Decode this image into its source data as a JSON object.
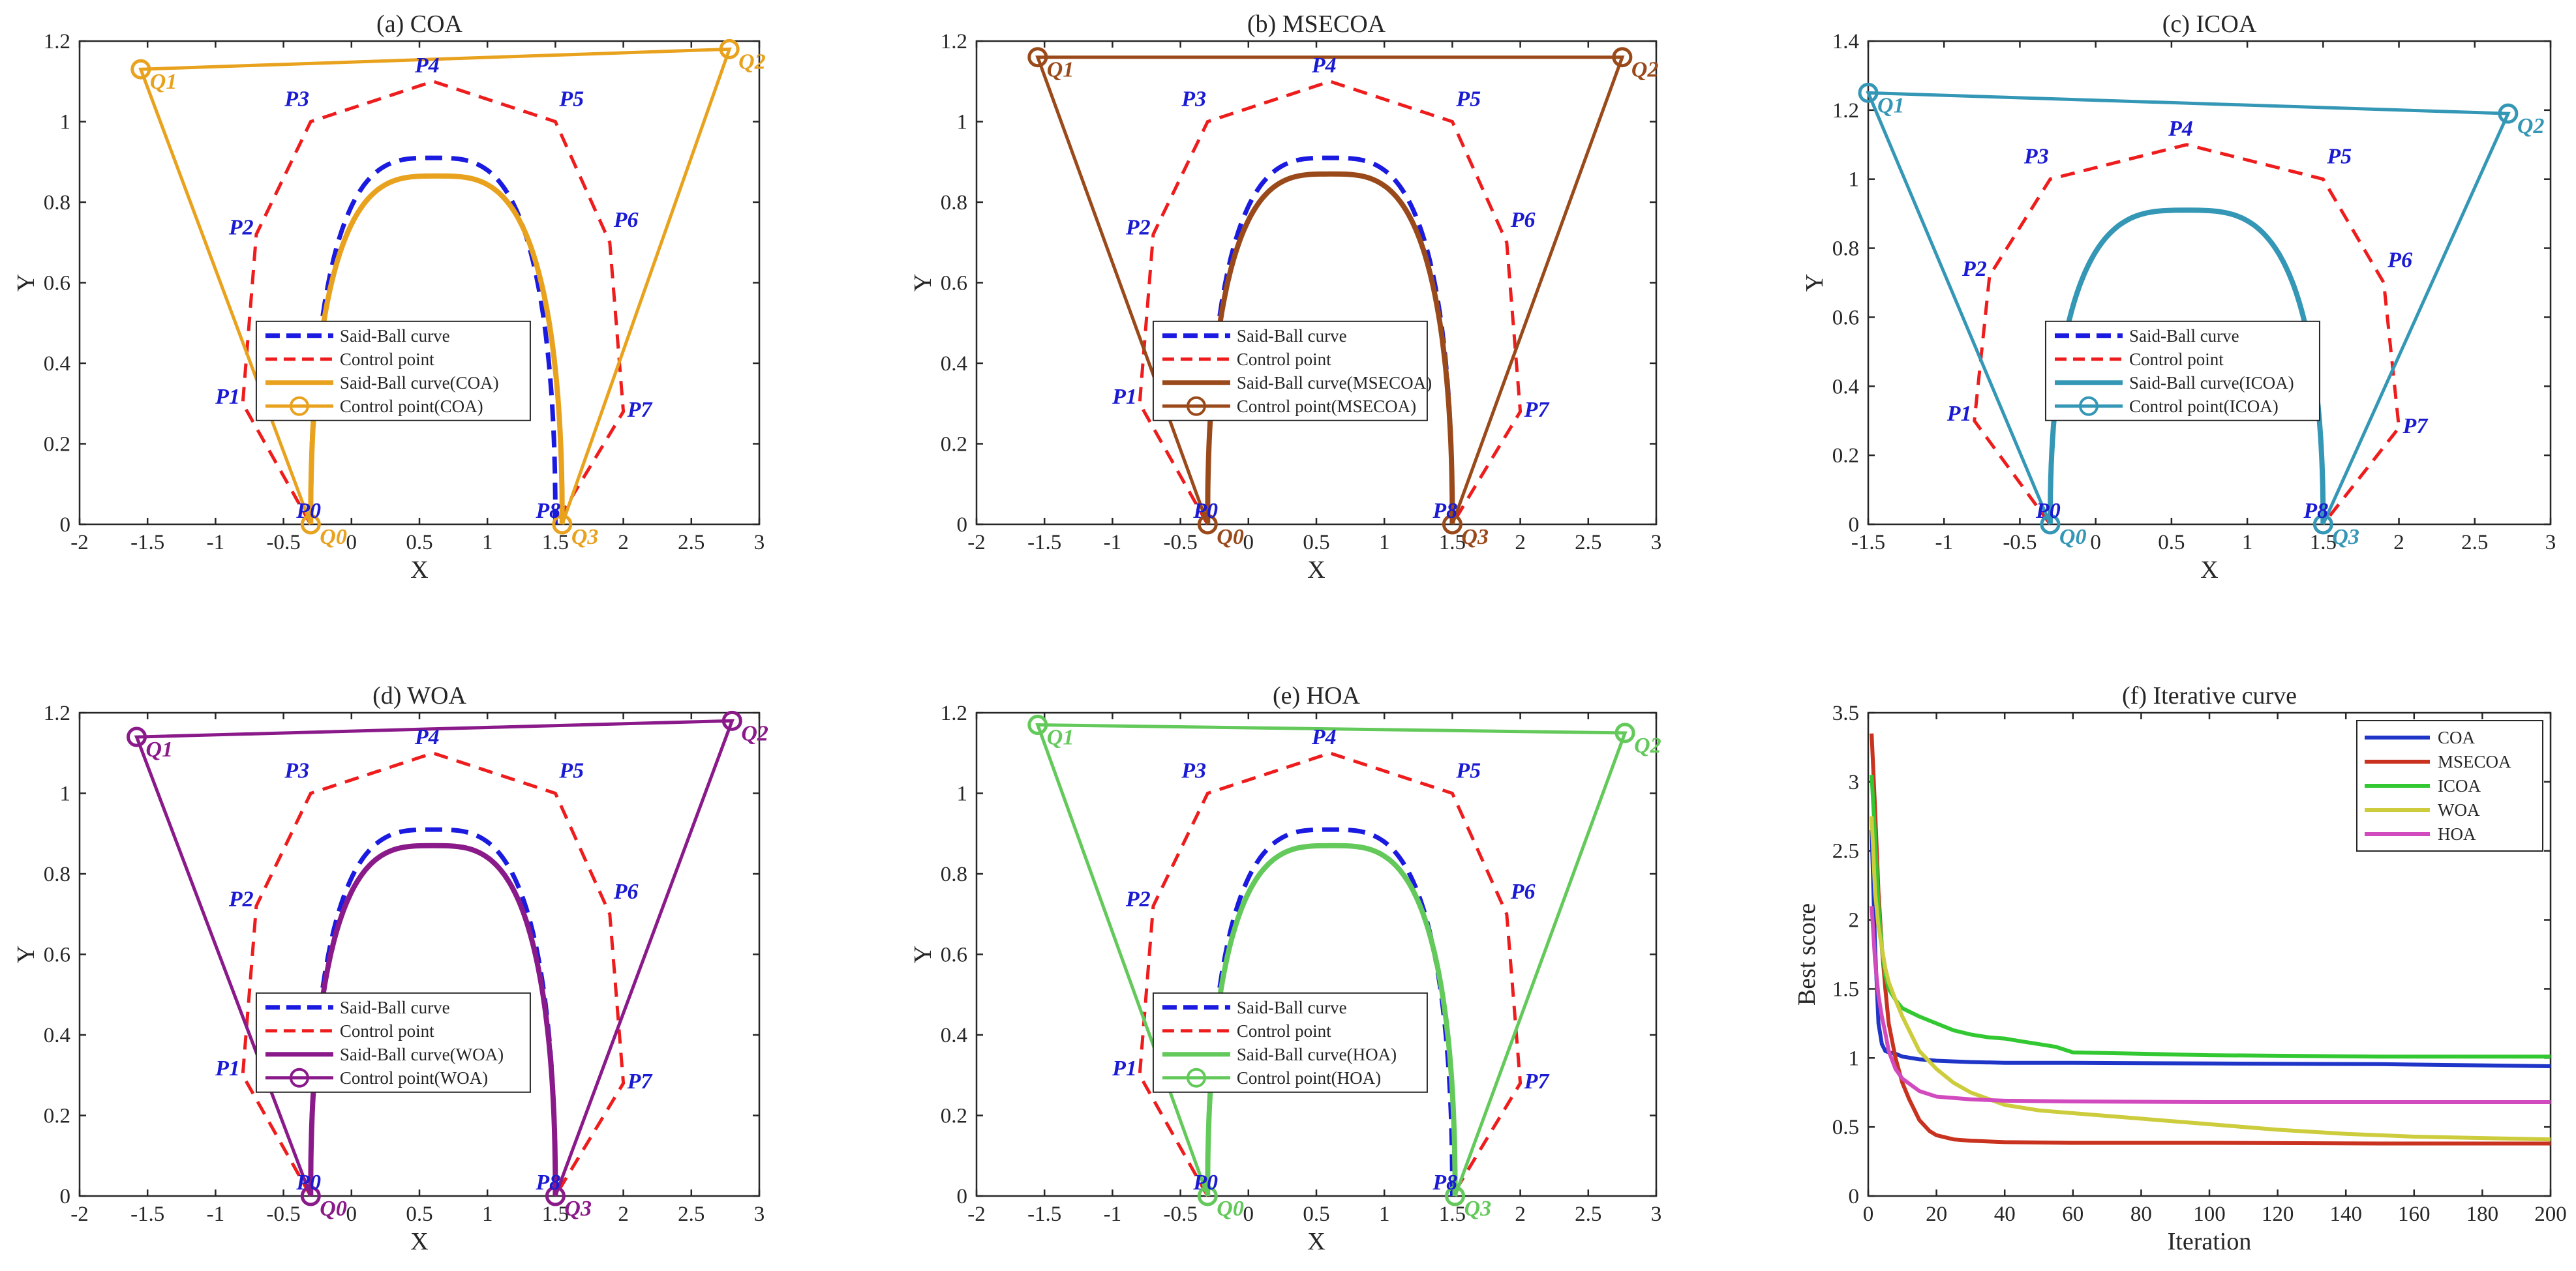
{
  "chart_data": [
    {
      "type": "line",
      "title": "(a) COA",
      "xlabel": "X",
      "ylabel": "Y",
      "xlim": [
        -2,
        3
      ],
      "ylim": [
        0,
        1.2
      ],
      "xticks": [
        -2,
        -1.5,
        -1,
        -0.5,
        0,
        0.5,
        1,
        1.5,
        2,
        2.5,
        3
      ],
      "xtick_labels": [
        "-2",
        "-1.5",
        "-1",
        "-0.5",
        "0",
        "0.5",
        "1",
        "1.5",
        "2",
        "2.5",
        "3"
      ],
      "yticks": [
        0,
        0.2,
        0.4,
        0.6,
        0.8,
        1,
        1.2
      ],
      "ytick_labels": [
        "0",
        "0.2",
        "0.4",
        "0.6",
        "0.8",
        "1",
        "1.2"
      ],
      "color": "#e8a21e",
      "original_control_points": [
        [
          -0.3,
          0
        ],
        [
          -0.8,
          0.3
        ],
        [
          -0.7,
          0.72
        ],
        [
          -0.3,
          1
        ],
        [
          0.6,
          1.1
        ],
        [
          1.5,
          1
        ],
        [
          1.9,
          0.7
        ],
        [
          2.0,
          0.28
        ],
        [
          1.5,
          0
        ]
      ],
      "original_point_labels": [
        "P0",
        "P1",
        "P2",
        "P3",
        "P4",
        "P5",
        "P6",
        "P7",
        "P8"
      ],
      "optimized_control_points": [
        [
          -0.3,
          0
        ],
        [
          -1.55,
          1.13
        ],
        [
          2.78,
          1.18
        ],
        [
          1.55,
          0
        ]
      ],
      "optimized_point_labels": [
        "Q0",
        "Q1",
        "Q2",
        "Q3"
      ],
      "fitted_curve": {
        "start": [
          -0.3,
          0
        ],
        "peak": [
          0.6,
          0.865
        ],
        "end": [
          1.55,
          0
        ]
      },
      "legend": [
        "Said-Ball curve",
        "Control point",
        "Said-Ball curve(COA)",
        "Control point(COA)"
      ]
    },
    {
      "type": "line",
      "title": "(b) MSECOA",
      "xlabel": "X",
      "ylabel": "Y",
      "xlim": [
        -2,
        3
      ],
      "ylim": [
        0,
        1.2
      ],
      "xticks": [
        -2,
        -1.5,
        -1,
        -0.5,
        0,
        0.5,
        1,
        1.5,
        2,
        2.5,
        3
      ],
      "xtick_labels": [
        "-2",
        "-1.5",
        "-1",
        "-0.5",
        "0",
        "0.5",
        "1",
        "1.5",
        "2",
        "2.5",
        "3"
      ],
      "yticks": [
        0,
        0.2,
        0.4,
        0.6,
        0.8,
        1,
        1.2
      ],
      "ytick_labels": [
        "0",
        "0.2",
        "0.4",
        "0.6",
        "0.8",
        "1",
        "1.2"
      ],
      "color": "#9a4a1a",
      "original_control_points": [
        [
          -0.3,
          0
        ],
        [
          -0.8,
          0.3
        ],
        [
          -0.7,
          0.72
        ],
        [
          -0.3,
          1
        ],
        [
          0.6,
          1.1
        ],
        [
          1.5,
          1
        ],
        [
          1.9,
          0.7
        ],
        [
          2.0,
          0.28
        ],
        [
          1.5,
          0
        ]
      ],
      "original_point_labels": [
        "P0",
        "P1",
        "P2",
        "P3",
        "P4",
        "P5",
        "P6",
        "P7",
        "P8"
      ],
      "optimized_control_points": [
        [
          -0.3,
          0
        ],
        [
          -1.55,
          1.16
        ],
        [
          2.75,
          1.16
        ],
        [
          1.5,
          0
        ]
      ],
      "optimized_point_labels": [
        "Q0",
        "Q1",
        "Q2",
        "Q3"
      ],
      "fitted_curve": {
        "start": [
          -0.3,
          0
        ],
        "peak": [
          0.6,
          0.87
        ],
        "end": [
          1.5,
          0
        ]
      },
      "legend": [
        "Said-Ball curve",
        "Control point",
        "Said-Ball curve(MSECOA)",
        "Control point(MSECOA)"
      ]
    },
    {
      "type": "line",
      "title": "(c) ICOA",
      "xlabel": "X",
      "ylabel": "Y",
      "xlim": [
        -1.5,
        3
      ],
      "ylim": [
        0,
        1.4
      ],
      "xticks": [
        -1.5,
        -1,
        -0.5,
        0,
        0.5,
        1,
        1.5,
        2,
        2.5,
        3
      ],
      "xtick_labels": [
        "-1.5",
        "-1",
        "-0.5",
        "0",
        "0.5",
        "1",
        "1.5",
        "2",
        "2.5",
        "3"
      ],
      "yticks": [
        0,
        0.2,
        0.4,
        0.6,
        0.8,
        1,
        1.2,
        1.4
      ],
      "ytick_labels": [
        "0",
        "0.2",
        "0.4",
        "0.6",
        "0.8",
        "1",
        "1.2",
        "1.4"
      ],
      "color": "#3497b6",
      "original_control_points": [
        [
          -0.3,
          0
        ],
        [
          -0.8,
          0.3
        ],
        [
          -0.7,
          0.72
        ],
        [
          -0.3,
          1
        ],
        [
          0.6,
          1.1
        ],
        [
          1.5,
          1
        ],
        [
          1.9,
          0.7
        ],
        [
          2.0,
          0.28
        ],
        [
          1.5,
          0
        ]
      ],
      "original_point_labels": [
        "P0",
        "P1",
        "P2",
        "P3",
        "P4",
        "P5",
        "P6",
        "P7",
        "P8"
      ],
      "optimized_control_points": [
        [
          -0.3,
          0
        ],
        [
          -1.5,
          1.25
        ],
        [
          2.72,
          1.19
        ],
        [
          1.5,
          0
        ]
      ],
      "optimized_point_labels": [
        "Q0",
        "Q1",
        "Q2",
        "Q3"
      ],
      "fitted_curve": {
        "start": [
          -0.3,
          0
        ],
        "peak": [
          0.6,
          0.91
        ],
        "end": [
          1.5,
          0
        ]
      },
      "legend": [
        "Said-Ball curve",
        "Control point",
        "Said-Ball curve(ICOA)",
        "Control point(ICOA)"
      ]
    },
    {
      "type": "line",
      "title": "(d) WOA",
      "xlabel": "X",
      "ylabel": "Y",
      "xlim": [
        -2,
        3
      ],
      "ylim": [
        0,
        1.2
      ],
      "xticks": [
        -2,
        -1.5,
        -1,
        -0.5,
        0,
        0.5,
        1,
        1.5,
        2,
        2.5,
        3
      ],
      "xtick_labels": [
        "-2",
        "-1.5",
        "-1",
        "-0.5",
        "0",
        "0.5",
        "1",
        "1.5",
        "2",
        "2.5",
        "3"
      ],
      "yticks": [
        0,
        0.2,
        0.4,
        0.6,
        0.8,
        1,
        1.2
      ],
      "ytick_labels": [
        "0",
        "0.2",
        "0.4",
        "0.6",
        "0.8",
        "1",
        "1.2"
      ],
      "color": "#8a1a8a",
      "original_control_points": [
        [
          -0.3,
          0
        ],
        [
          -0.8,
          0.3
        ],
        [
          -0.7,
          0.72
        ],
        [
          -0.3,
          1
        ],
        [
          0.6,
          1.1
        ],
        [
          1.5,
          1
        ],
        [
          1.9,
          0.7
        ],
        [
          2.0,
          0.28
        ],
        [
          1.5,
          0
        ]
      ],
      "original_point_labels": [
        "P0",
        "P1",
        "P2",
        "P3",
        "P4",
        "P5",
        "P6",
        "P7",
        "P8"
      ],
      "optimized_control_points": [
        [
          -0.3,
          0
        ],
        [
          -1.58,
          1.14
        ],
        [
          2.8,
          1.18
        ],
        [
          1.5,
          0
        ]
      ],
      "optimized_point_labels": [
        "Q0",
        "Q1",
        "Q2",
        "Q3"
      ],
      "fitted_curve": {
        "start": [
          -0.3,
          0
        ],
        "peak": [
          0.6,
          0.87
        ],
        "end": [
          1.5,
          0
        ]
      },
      "legend": [
        "Said-Ball curve",
        "Control point",
        "Said-Ball curve(WOA)",
        "Control point(WOA)"
      ]
    },
    {
      "type": "line",
      "title": "(e) HOA",
      "xlabel": "X",
      "ylabel": "Y",
      "xlim": [
        -2,
        3
      ],
      "ylim": [
        0,
        1.2
      ],
      "xticks": [
        -2,
        -1.5,
        -1,
        -0.5,
        0,
        0.5,
        1,
        1.5,
        2,
        2.5,
        3
      ],
      "xtick_labels": [
        "-2",
        "-1.5",
        "-1",
        "-0.5",
        "0",
        "0.5",
        "1",
        "1.5",
        "2",
        "2.5",
        "3"
      ],
      "yticks": [
        0,
        0.2,
        0.4,
        0.6,
        0.8,
        1,
        1.2
      ],
      "ytick_labels": [
        "0",
        "0.2",
        "0.4",
        "0.6",
        "0.8",
        "1",
        "1.2"
      ],
      "color": "#63c95a",
      "original_control_points": [
        [
          -0.3,
          0
        ],
        [
          -0.8,
          0.3
        ],
        [
          -0.7,
          0.72
        ],
        [
          -0.3,
          1
        ],
        [
          0.6,
          1.1
        ],
        [
          1.5,
          1
        ],
        [
          1.9,
          0.7
        ],
        [
          2.0,
          0.28
        ],
        [
          1.5,
          0
        ]
      ],
      "original_point_labels": [
        "P0",
        "P1",
        "P2",
        "P3",
        "P4",
        "P5",
        "P6",
        "P7",
        "P8"
      ],
      "optimized_control_points": [
        [
          -0.3,
          0
        ],
        [
          -1.55,
          1.17
        ],
        [
          2.77,
          1.15
        ],
        [
          1.52,
          0
        ]
      ],
      "optimized_point_labels": [
        "Q0",
        "Q1",
        "Q2",
        "Q3"
      ],
      "fitted_curve": {
        "start": [
          -0.3,
          0
        ],
        "peak": [
          0.6,
          0.87
        ],
        "end": [
          1.52,
          0
        ]
      },
      "legend": [
        "Said-Ball curve",
        "Control point",
        "Said-Ball curve(HOA)",
        "Control point(HOA)"
      ]
    },
    {
      "type": "line",
      "title": "(f) Iterative curve",
      "xlabel": "Iteration",
      "ylabel": "Best score",
      "xlim": [
        0,
        200
      ],
      "ylim": [
        0,
        3.5
      ],
      "xticks": [
        0,
        20,
        40,
        60,
        80,
        100,
        120,
        140,
        160,
        180,
        200
      ],
      "xtick_labels": [
        "0",
        "20",
        "40",
        "60",
        "80",
        "100",
        "120",
        "140",
        "160",
        "180",
        "200"
      ],
      "yticks": [
        0,
        0.5,
        1,
        1.5,
        2,
        2.5,
        3,
        3.5
      ],
      "ytick_labels": [
        "0",
        "0.5",
        "1",
        "1.5",
        "2",
        "2.5",
        "3",
        "3.5"
      ],
      "legend_position": "top-right",
      "series": [
        {
          "name": "COA",
          "color": "#1f35c8",
          "x": [
            1,
            2,
            3,
            4,
            5,
            6,
            8,
            10,
            15,
            20,
            25,
            30,
            40,
            60,
            100,
            150,
            200
          ],
          "y": [
            2.65,
            1.8,
            1.25,
            1.1,
            1.05,
            1.04,
            1.03,
            1.01,
            0.99,
            0.98,
            0.975,
            0.97,
            0.965,
            0.965,
            0.96,
            0.955,
            0.94
          ]
        },
        {
          "name": "MSECOA",
          "color": "#c8321e",
          "x": [
            1,
            2,
            3,
            4,
            5,
            6,
            8,
            10,
            12,
            15,
            18,
            20,
            25,
            30,
            40,
            60,
            100,
            150,
            200
          ],
          "y": [
            3.35,
            2.8,
            2.2,
            1.8,
            1.5,
            1.25,
            1.0,
            0.82,
            0.7,
            0.55,
            0.47,
            0.44,
            0.41,
            0.4,
            0.39,
            0.385,
            0.385,
            0.38,
            0.38
          ]
        },
        {
          "name": "ICOA",
          "color": "#32c832",
          "x": [
            1,
            2,
            3,
            4,
            5,
            6,
            8,
            10,
            15,
            20,
            25,
            30,
            35,
            40,
            45,
            50,
            55,
            60,
            80,
            100,
            150,
            200
          ],
          "y": [
            3.05,
            2.6,
            2.1,
            1.8,
            1.6,
            1.5,
            1.42,
            1.36,
            1.3,
            1.25,
            1.2,
            1.17,
            1.15,
            1.14,
            1.12,
            1.1,
            1.08,
            1.04,
            1.03,
            1.02,
            1.01,
            1.01
          ]
        },
        {
          "name": "WOA",
          "color": "#cccc3c",
          "x": [
            1,
            2,
            3,
            4,
            5,
            6,
            8,
            10,
            15,
            20,
            25,
            30,
            40,
            50,
            60,
            80,
            100,
            120,
            140,
            160,
            180,
            200
          ],
          "y": [
            2.75,
            2.2,
            1.95,
            1.8,
            1.65,
            1.55,
            1.42,
            1.3,
            1.05,
            0.92,
            0.82,
            0.75,
            0.66,
            0.62,
            0.6,
            0.56,
            0.52,
            0.48,
            0.45,
            0.43,
            0.42,
            0.41
          ]
        },
        {
          "name": "HOA",
          "color": "#d24bbe",
          "x": [
            1,
            2,
            3,
            4,
            5,
            6,
            8,
            10,
            15,
            20,
            30,
            40,
            60,
            100,
            150,
            200
          ],
          "y": [
            2.1,
            1.7,
            1.45,
            1.3,
            1.18,
            1.05,
            0.92,
            0.85,
            0.76,
            0.72,
            0.7,
            0.69,
            0.685,
            0.68,
            0.68,
            0.68
          ]
        }
      ]
    }
  ]
}
